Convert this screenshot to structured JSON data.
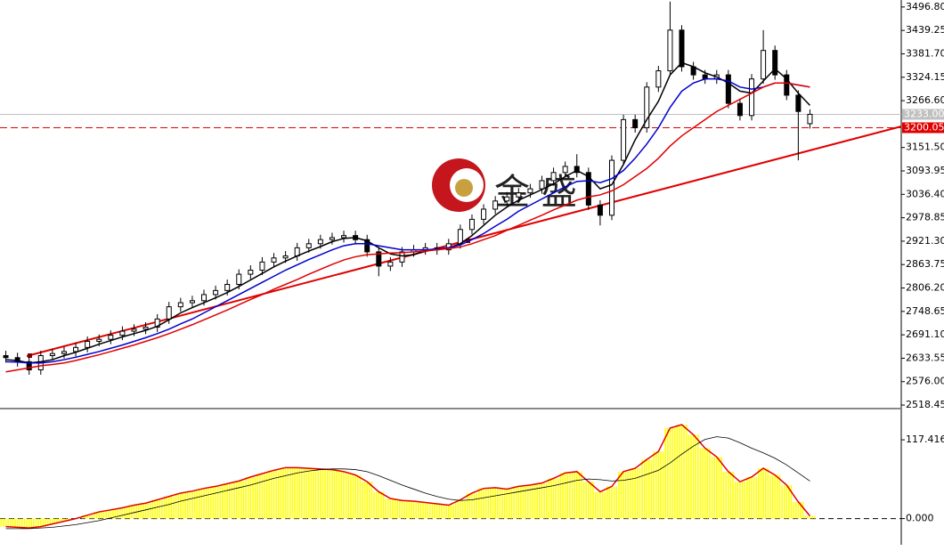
{
  "chart_data": [
    {
      "type": "candlestick",
      "watermark": "金 盛",
      "open": [
        2640,
        2635,
        2625,
        2605,
        2640,
        2645,
        2650,
        2660,
        2675,
        2680,
        2690,
        2700,
        2705,
        2710,
        2730,
        2760,
        2770,
        2775,
        2790,
        2800,
        2815,
        2840,
        2850,
        2870,
        2880,
        2885,
        2905,
        2915,
        2925,
        2930,
        2935,
        2925,
        2895,
        2860,
        2870,
        2895,
        2900,
        2905,
        2900,
        2915,
        2950,
        2975,
        3000,
        3020,
        3030,
        3040,
        3050,
        3070,
        3090,
        3105,
        3090,
        3010,
        2985,
        3120,
        3220,
        3200,
        3300,
        3340,
        3440,
        3350,
        3330,
        3320,
        3330,
        3260,
        3230,
        3320,
        3390,
        3330,
        3280,
        3210
      ],
      "high": [
        2652,
        2647,
        2637,
        2652,
        2657,
        2662,
        2672,
        2687,
        2692,
        2702,
        2712,
        2717,
        2722,
        2742,
        2772,
        2782,
        2787,
        2802,
        2812,
        2827,
        2852,
        2862,
        2882,
        2892,
        2897,
        2917,
        2927,
        2937,
        2942,
        2947,
        2947,
        2937,
        2907,
        2882,
        2907,
        2912,
        2917,
        2917,
        2927,
        2962,
        2987,
        3012,
        3032,
        3042,
        3052,
        3062,
        3082,
        3102,
        3117,
        3135,
        3102,
        3022,
        3132,
        3232,
        3232,
        3312,
        3352,
        3510,
        3452,
        3362,
        3342,
        3342,
        3342,
        3272,
        3332,
        3440,
        3402,
        3342,
        3292,
        3245
      ],
      "low": [
        2623,
        2613,
        2593,
        2593,
        2628,
        2633,
        2638,
        2648,
        2663,
        2668,
        2678,
        2688,
        2693,
        2698,
        2718,
        2748,
        2758,
        2763,
        2778,
        2788,
        2803,
        2828,
        2838,
        2858,
        2868,
        2873,
        2893,
        2903,
        2913,
        2918,
        2913,
        2883,
        2835,
        2848,
        2858,
        2883,
        2888,
        2888,
        2888,
        2903,
        2938,
        2963,
        2988,
        3008,
        3018,
        3028,
        3038,
        3058,
        3078,
        3078,
        2998,
        2960,
        2973,
        3108,
        3188,
        3188,
        3288,
        3328,
        3338,
        3318,
        3308,
        3308,
        3248,
        3218,
        3218,
        3308,
        3318,
        3268,
        3120,
        3198
      ],
      "close": [
        2635,
        2625,
        2605,
        2640,
        2645,
        2650,
        2660,
        2675,
        2680,
        2690,
        2700,
        2705,
        2710,
        2730,
        2760,
        2770,
        2775,
        2790,
        2800,
        2815,
        2840,
        2850,
        2870,
        2880,
        2885,
        2905,
        2915,
        2925,
        2930,
        2935,
        2925,
        2895,
        2860,
        2870,
        2895,
        2900,
        2905,
        2900,
        2915,
        2950,
        2975,
        3000,
        3020,
        3030,
        3040,
        3050,
        3070,
        3090,
        3105,
        3090,
        3010,
        2985,
        3120,
        3220,
        3200,
        3300,
        3340,
        3440,
        3350,
        3330,
        3320,
        3330,
        3260,
        3230,
        3320,
        3390,
        3330,
        3280,
        3240,
        3233
      ],
      "lines": [
        {
          "color": "#000000",
          "values": [
            2630,
            2628,
            2622,
            2625,
            2630,
            2640,
            2648,
            2658,
            2668,
            2677,
            2686,
            2694,
            2702,
            2712,
            2728,
            2745,
            2758,
            2770,
            2782,
            2795,
            2810,
            2826,
            2842,
            2858,
            2872,
            2885,
            2897,
            2908,
            2920,
            2928,
            2930,
            2922,
            2905,
            2890,
            2885,
            2888,
            2898,
            2902,
            2905,
            2915,
            2935,
            2960,
            2985,
            3005,
            3022,
            3035,
            3048,
            3062,
            3080,
            3095,
            3080,
            3050,
            3060,
            3110,
            3170,
            3220,
            3265,
            3330,
            3360,
            3350,
            3335,
            3325,
            3310,
            3290,
            3285,
            3315,
            3345,
            3320,
            3285,
            3255
          ]
        },
        {
          "color": "#0000cc",
          "values": [
            2625,
            2624,
            2622,
            2622,
            2625,
            2630,
            2636,
            2643,
            2650,
            2658,
            2666,
            2675,
            2684,
            2694,
            2705,
            2718,
            2730,
            2745,
            2760,
            2775,
            2790,
            2805,
            2820,
            2835,
            2850,
            2863,
            2876,
            2888,
            2900,
            2910,
            2915,
            2915,
            2910,
            2905,
            2900,
            2900,
            2900,
            2902,
            2905,
            2912,
            2925,
            2940,
            2958,
            2975,
            2995,
            3010,
            3025,
            3040,
            3055,
            3068,
            3070,
            3065,
            3075,
            3095,
            3125,
            3160,
            3200,
            3250,
            3290,
            3310,
            3320,
            3320,
            3315,
            3300,
            3295,
            3300,
            3310,
            3310,
            3305,
            3300
          ]
        },
        {
          "color": "#e00000",
          "values": [
            2600,
            2605,
            2610,
            2615,
            2618,
            2622,
            2628,
            2635,
            2642,
            2650,
            2658,
            2666,
            2675,
            2684,
            2694,
            2705,
            2716,
            2728,
            2740,
            2752,
            2765,
            2778,
            2790,
            2803,
            2815,
            2827,
            2840,
            2852,
            2864,
            2875,
            2883,
            2888,
            2890,
            2892,
            2893,
            2895,
            2897,
            2900,
            2903,
            2907,
            2915,
            2925,
            2935,
            2948,
            2960,
            2973,
            2985,
            2998,
            3010,
            3022,
            3030,
            3035,
            3045,
            3060,
            3080,
            3100,
            3125,
            3155,
            3180,
            3200,
            3220,
            3240,
            3255,
            3270,
            3285,
            3300,
            3310,
            3310,
            3305,
            3300
          ]
        }
      ],
      "price_lines": [
        {
          "value": 3233,
          "label": "3233.00",
          "color": "#c0c0c0"
        },
        {
          "value": 3200.05,
          "label": "3200.05",
          "color": "#e00000"
        }
      ],
      "ylim": [
        2512,
        3514
      ],
      "yticks": [
        {
          "value": 3496.8,
          "label": "3496.80"
        },
        {
          "value": 3439.25,
          "label": "3439.25"
        },
        {
          "value": 3381.7,
          "label": "3381.70"
        },
        {
          "value": 3324.15,
          "label": "3324.15"
        },
        {
          "value": 3266.6,
          "label": "3266.60"
        },
        {
          "value": 3151.5,
          "label": "3151.50"
        },
        {
          "value": 3093.95,
          "label": "3093.95"
        },
        {
          "value": 3036.4,
          "label": "3036.40"
        },
        {
          "value": 2978.85,
          "label": "2978.85"
        },
        {
          "value": 2921.3,
          "label": "2921.30"
        },
        {
          "value": 2863.75,
          "label": "2863.75"
        },
        {
          "value": 2806.2,
          "label": "2806.20"
        },
        {
          "value": 2748.65,
          "label": "2748.65"
        },
        {
          "value": 2691.1,
          "label": "2691.10"
        },
        {
          "value": 2633.55,
          "label": "2633.55"
        },
        {
          "value": 2576,
          "label": "2576.00"
        },
        {
          "value": 2518.45,
          "label": "2518.45"
        }
      ]
    },
    {
      "type": "bar",
      "values": [
        -12,
        -13,
        -14,
        -12,
        -8,
        -4,
        0,
        5,
        10,
        13,
        16,
        20,
        23,
        28,
        33,
        38,
        41,
        45,
        48,
        52,
        56,
        62,
        67,
        72,
        76,
        76,
        75,
        74,
        73,
        70,
        65,
        55,
        40,
        30,
        27,
        26,
        24,
        22,
        20,
        28,
        38,
        45,
        46,
        44,
        48,
        50,
        53,
        60,
        68,
        70,
        55,
        40,
        48,
        70,
        75,
        88,
        100,
        135,
        140,
        125,
        105,
        92,
        70,
        55,
        62,
        75,
        65,
        50,
        25,
        4
      ],
      "color": "#ffff00",
      "line_color": "#e00000",
      "signal": {
        "color": "#000000",
        "values": [
          -15,
          -15,
          -15,
          -14,
          -13,
          -11,
          -9,
          -6,
          -3,
          1,
          5,
          9,
          13,
          17,
          21,
          26,
          30,
          34,
          38,
          42,
          46,
          50,
          55,
          60,
          64,
          68,
          71,
          73,
          74,
          74,
          73,
          70,
          64,
          57,
          50,
          44,
          38,
          33,
          29,
          27,
          28,
          31,
          34,
          37,
          40,
          43,
          46,
          49,
          53,
          57,
          59,
          58,
          56,
          57,
          60,
          66,
          72,
          83,
          96,
          108,
          118,
          122,
          120,
          113,
          105,
          98,
          90,
          80,
          68,
          56
        ]
      },
      "ylim": [
        -39,
        160
      ],
      "yticks": [
        117.416,
        {
          "value": 0,
          "label": "0.000"
        }
      ]
    }
  ]
}
